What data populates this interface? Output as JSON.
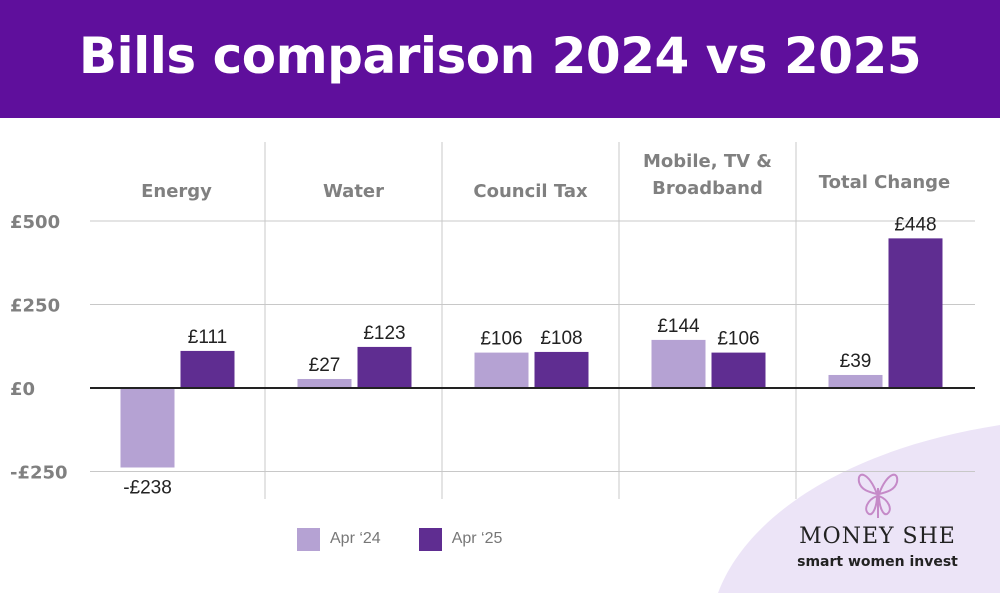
{
  "title": "Bills comparison 2024 vs 2025",
  "colors": {
    "header_bg": "#5f0f9c",
    "apr24": "#b5a2d3",
    "apr25": "#5f2d91",
    "axis_text": "#808080",
    "grid": "#c8c8c8",
    "blob": "#ece4f7",
    "butterfly": "#c58ac8"
  },
  "chart_data": {
    "type": "bar",
    "categories": [
      "Energy",
      "Water",
      "Council Tax",
      "Mobile, TV & Broadband",
      "Total Change"
    ],
    "category_lines": [
      [
        "Energy"
      ],
      [
        "Water"
      ],
      [
        "Council Tax"
      ],
      [
        "Mobile, TV &",
        "Broadband"
      ],
      [
        "Total Change"
      ]
    ],
    "series": [
      {
        "name": "Apr ‘24",
        "values": [
          -238,
          27,
          106,
          144,
          39
        ],
        "labels": [
          "-£238",
          "£27",
          "£106",
          "£144",
          "£39"
        ]
      },
      {
        "name": "Apr ‘25",
        "values": [
          111,
          123,
          108,
          106,
          448
        ],
        "labels": [
          "£111",
          "£123",
          "£108",
          "£106",
          "£448"
        ]
      }
    ],
    "y_ticks": [
      500,
      250,
      0,
      -250
    ],
    "y_tick_labels": [
      "£500",
      "£250",
      "£0",
      "-£250"
    ],
    "ylim": [
      -300,
      500
    ],
    "title": "Bills comparison 2024 vs 2025",
    "xlabel": "",
    "ylabel": "",
    "grid": true,
    "legend_position": "bottom-center"
  },
  "legend": {
    "apr24": "Apr ‘24",
    "apr25": "Apr ‘25"
  },
  "logo": {
    "brand": "MONEY SHE",
    "tagline": "smart women invest"
  },
  "icons": {
    "logo_mark": "butterfly-icon"
  }
}
